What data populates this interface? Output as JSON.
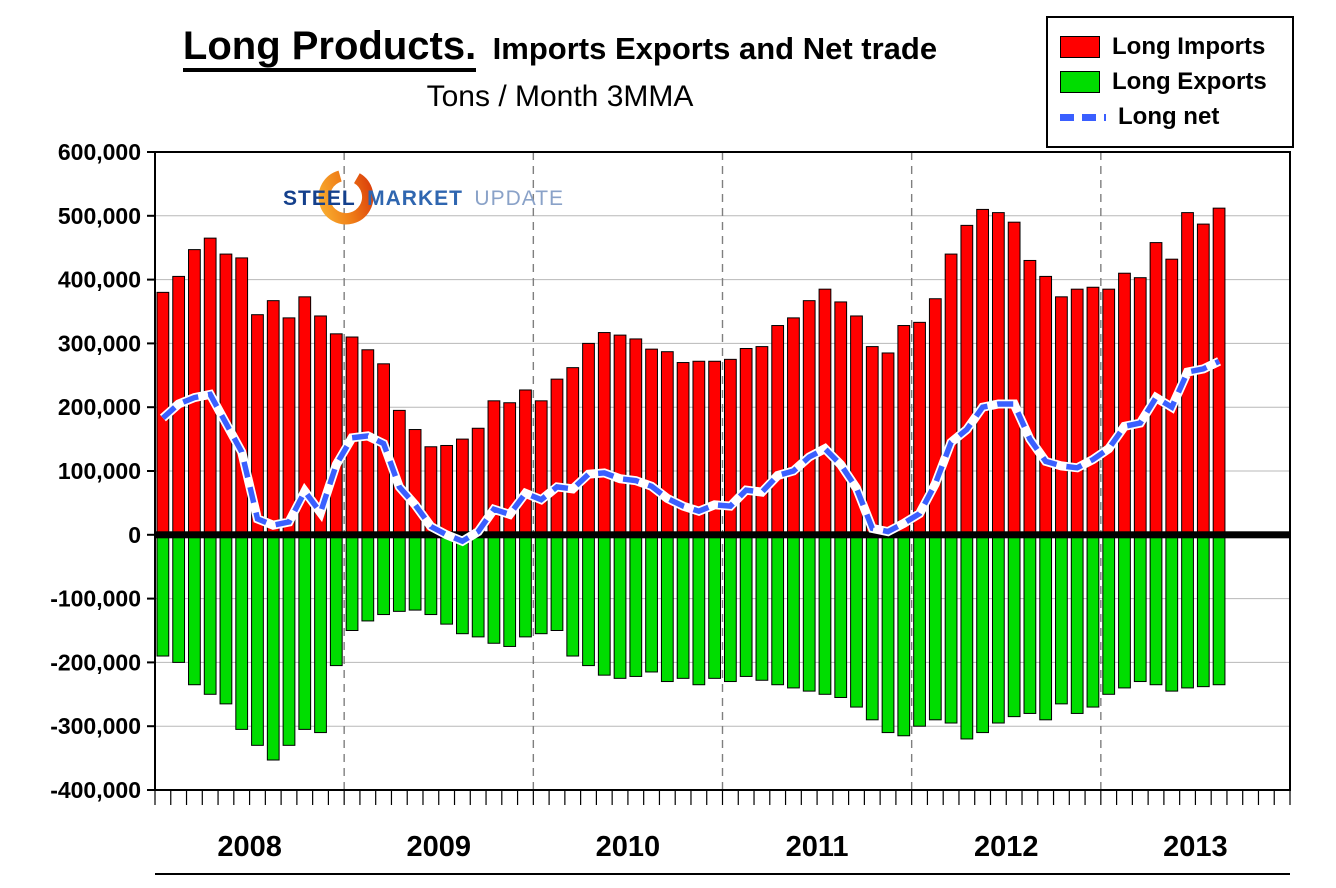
{
  "header": {
    "title_main": "Long Products.",
    "title_rest": "Imports Exports and Net trade",
    "subtitle": "Tons / Month 3MMA"
  },
  "logo": {
    "word1": "STEEL",
    "word2": "MARKET",
    "word3": "UPDATE"
  },
  "chart_data": {
    "type": "bar",
    "title": "Long Products. Imports Exports and Net trade",
    "subtitle": "Tons / Month 3MMA",
    "ylim": [
      -400000,
      600000
    ],
    "ytick_step": 100000,
    "xlabel": "",
    "ylabel": "",
    "grid": true,
    "legend_position": "top-right",
    "years": [
      "2008",
      "2009",
      "2010",
      "2011",
      "2012",
      "2013"
    ],
    "months_per_year_slot": 12,
    "colors": {
      "grid": "#b8b8b8",
      "year_gridline": "#7f7f7f",
      "axis": "#000000",
      "zero_line": "#000000",
      "background": "#ffffff",
      "bar_outline": "#000000",
      "net_dash_gap": "#ffffff"
    },
    "series": [
      {
        "name": "Long Imports",
        "type": "bar",
        "color": "#FF0000",
        "values": [
          380000,
          405000,
          447000,
          465000,
          440000,
          434000,
          345000,
          367000,
          340000,
          373000,
          343000,
          315000,
          310000,
          290000,
          268000,
          195000,
          165000,
          138000,
          140000,
          150000,
          167000,
          210000,
          207000,
          227000,
          210000,
          244000,
          262000,
          300000,
          317000,
          313000,
          307000,
          291000,
          287000,
          270000,
          272000,
          272000,
          275000,
          292000,
          295000,
          328000,
          340000,
          367000,
          385000,
          365000,
          343000,
          295000,
          285000,
          328000,
          333000,
          370000,
          440000,
          485000,
          510000,
          505000,
          490000,
          430000,
          405000,
          373000,
          385000,
          388000,
          385000,
          410000,
          403000,
          458000,
          432000,
          505000,
          487000,
          512000
        ]
      },
      {
        "name": "Long Exports",
        "type": "bar",
        "color": "#00DD00",
        "values": [
          -190000,
          -200000,
          -235000,
          -250000,
          -265000,
          -305000,
          -330000,
          -353000,
          -330000,
          -305000,
          -310000,
          -205000,
          -150000,
          -135000,
          -125000,
          -120000,
          -118000,
          -125000,
          -140000,
          -155000,
          -160000,
          -170000,
          -175000,
          -160000,
          -155000,
          -150000,
          -190000,
          -205000,
          -220000,
          -225000,
          -222000,
          -215000,
          -230000,
          -225000,
          -235000,
          -225000,
          -230000,
          -222000,
          -228000,
          -235000,
          -240000,
          -245000,
          -250000,
          -255000,
          -270000,
          -290000,
          -310000,
          -315000,
          -300000,
          -290000,
          -295000,
          -320000,
          -310000,
          -295000,
          -285000,
          -280000,
          -290000,
          -265000,
          -280000,
          -270000,
          -250000,
          -240000,
          -230000,
          -235000,
          -245000,
          -240000,
          -238000,
          -235000
        ]
      },
      {
        "name": "Long net",
        "type": "dashed-line",
        "color": "#3A5FFF",
        "values": [
          183000,
          205000,
          215000,
          220000,
          175000,
          130000,
          25000,
          15000,
          20000,
          68000,
          35000,
          110000,
          152000,
          155000,
          143000,
          75000,
          47000,
          13000,
          0,
          -10000,
          5000,
          40000,
          32000,
          65000,
          55000,
          75000,
          72000,
          95000,
          97000,
          88000,
          85000,
          76000,
          57000,
          45000,
          37000,
          47000,
          45000,
          70000,
          67000,
          93000,
          100000,
          122000,
          135000,
          110000,
          73000,
          10000,
          5000,
          18000,
          33000,
          80000,
          145000,
          165000,
          200000,
          205000,
          205000,
          150000,
          115000,
          108000,
          105000,
          118000,
          135000,
          170000,
          175000,
          215000,
          200000,
          255000,
          260000,
          272000
        ]
      }
    ]
  }
}
